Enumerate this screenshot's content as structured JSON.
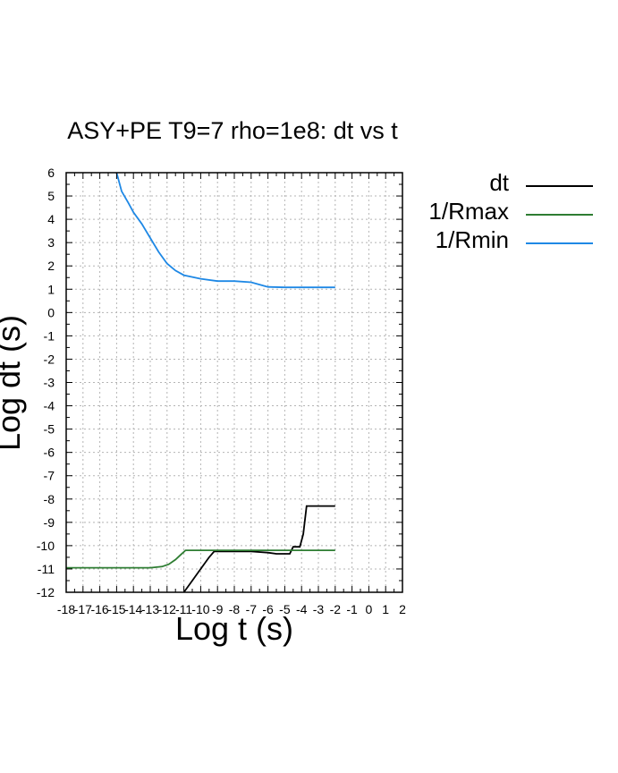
{
  "chart_data": {
    "type": "line",
    "title": "ASY+PE T9=7 rho=1e8: dt vs t",
    "xlabel": "Log t (s)",
    "ylabel": "Log dt (s)",
    "xlim": [
      -18,
      2
    ],
    "ylim": [
      -12,
      6
    ],
    "grid": true,
    "legend_position": "right-outside",
    "x_ticks": [
      "-18",
      "-17",
      "-16",
      "-15",
      "-14",
      "-13",
      "-12",
      "-11",
      "-10",
      "-9",
      "-8",
      "-7",
      "-6",
      "-5",
      "-4",
      "-3",
      "-2",
      "-1",
      "0",
      "1",
      "2"
    ],
    "y_ticks": [
      "6",
      "5",
      "4",
      "3",
      "2",
      "1",
      "0",
      "-1",
      "-2",
      "-3",
      "-4",
      "-5",
      "-6",
      "-7",
      "-8",
      "-9",
      "-10",
      "-11",
      "-12"
    ],
    "series": [
      {
        "name": "dt",
        "color": "#000000",
        "points": [
          [
            -11.0,
            -12.0
          ],
          [
            -10.5,
            -11.5
          ],
          [
            -10.0,
            -11.0
          ],
          [
            -9.5,
            -10.5
          ],
          [
            -9.2,
            -10.25
          ],
          [
            -8.0,
            -10.25
          ],
          [
            -7.0,
            -10.25
          ],
          [
            -6.0,
            -10.3
          ],
          [
            -5.5,
            -10.35
          ],
          [
            -4.7,
            -10.35
          ],
          [
            -4.5,
            -10.05
          ],
          [
            -4.1,
            -10.05
          ],
          [
            -3.9,
            -9.5
          ],
          [
            -3.7,
            -8.3
          ],
          [
            -3.4,
            -8.3
          ],
          [
            -2.0,
            -8.3
          ]
        ]
      },
      {
        "name": "1/Rmax",
        "color": "#2e7d32",
        "points": [
          [
            -18.0,
            -10.95
          ],
          [
            -17.0,
            -10.95
          ],
          [
            -16.0,
            -10.95
          ],
          [
            -15.0,
            -10.95
          ],
          [
            -14.0,
            -10.95
          ],
          [
            -13.0,
            -10.95
          ],
          [
            -12.3,
            -10.9
          ],
          [
            -11.9,
            -10.8
          ],
          [
            -11.5,
            -10.6
          ],
          [
            -11.2,
            -10.4
          ],
          [
            -10.9,
            -10.2
          ],
          [
            -10.0,
            -10.2
          ],
          [
            -8.0,
            -10.2
          ],
          [
            -6.0,
            -10.2
          ],
          [
            -4.0,
            -10.2
          ],
          [
            -2.0,
            -10.2
          ]
        ]
      },
      {
        "name": "1/Rmin",
        "color": "#1e88e5",
        "points": [
          [
            -15.0,
            6.0
          ],
          [
            -14.7,
            5.2
          ],
          [
            -14.3,
            4.7
          ],
          [
            -14.0,
            4.3
          ],
          [
            -13.5,
            3.8
          ],
          [
            -13.0,
            3.2
          ],
          [
            -12.5,
            2.6
          ],
          [
            -12.0,
            2.1
          ],
          [
            -11.5,
            1.8
          ],
          [
            -11.0,
            1.6
          ],
          [
            -10.0,
            1.45
          ],
          [
            -9.0,
            1.35
          ],
          [
            -8.0,
            1.35
          ],
          [
            -7.0,
            1.3
          ],
          [
            -6.5,
            1.2
          ],
          [
            -6.0,
            1.1
          ],
          [
            -5.0,
            1.08
          ],
          [
            -4.0,
            1.08
          ],
          [
            -3.0,
            1.08
          ],
          [
            -2.0,
            1.08
          ]
        ]
      }
    ]
  }
}
